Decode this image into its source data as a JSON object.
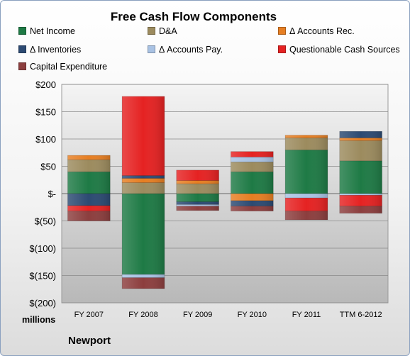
{
  "chart_data": {
    "type": "bar",
    "stacked": true,
    "title": "Free Cash Flow Components",
    "ylabel": "millions",
    "ylim": [
      -200,
      200
    ],
    "yticks": [
      "$200",
      "$150",
      "$100",
      "$50",
      "$-",
      "$(50)",
      "$(100)",
      "$(150)",
      "$(200)"
    ],
    "grid": true,
    "legend_position": "top",
    "categories": [
      "FY 2007",
      "FY 2008",
      "FY 2009",
      "FY 2010",
      "FY 2011",
      "TTM 6-2012"
    ],
    "series": [
      {
        "name": "Net Income",
        "color": "#1e7a45",
        "values": [
          40,
          -148,
          -15,
          40,
          80,
          60
        ]
      },
      {
        "name": "D&A",
        "color": "#9c8b5e",
        "values": [
          22,
          20,
          18,
          18,
          22,
          37
        ]
      },
      {
        "name": "Δ Accounts Rec.",
        "color": "#e67e22",
        "values": [
          8,
          8,
          6,
          -13,
          5,
          5
        ]
      },
      {
        "name": "Δ Inventories",
        "color": "#2c4a72",
        "values": [
          -22,
          5,
          -5,
          -10,
          0,
          12
        ]
      },
      {
        "name": "Δ Accounts Pay.",
        "color": "#a9c2e3",
        "values": [
          0,
          -6,
          -3,
          9,
          -8,
          -3
        ]
      },
      {
        "name": "Questionable Cash Sources",
        "color": "#e52222",
        "values": [
          -10,
          145,
          19,
          10,
          -24,
          -20
        ]
      },
      {
        "name": "Capital Expenditure",
        "color": "#8c3e3e",
        "values": [
          -18,
          -20,
          -8,
          -9,
          -16,
          -13
        ]
      }
    ]
  },
  "footer": {
    "company": "Newport"
  }
}
